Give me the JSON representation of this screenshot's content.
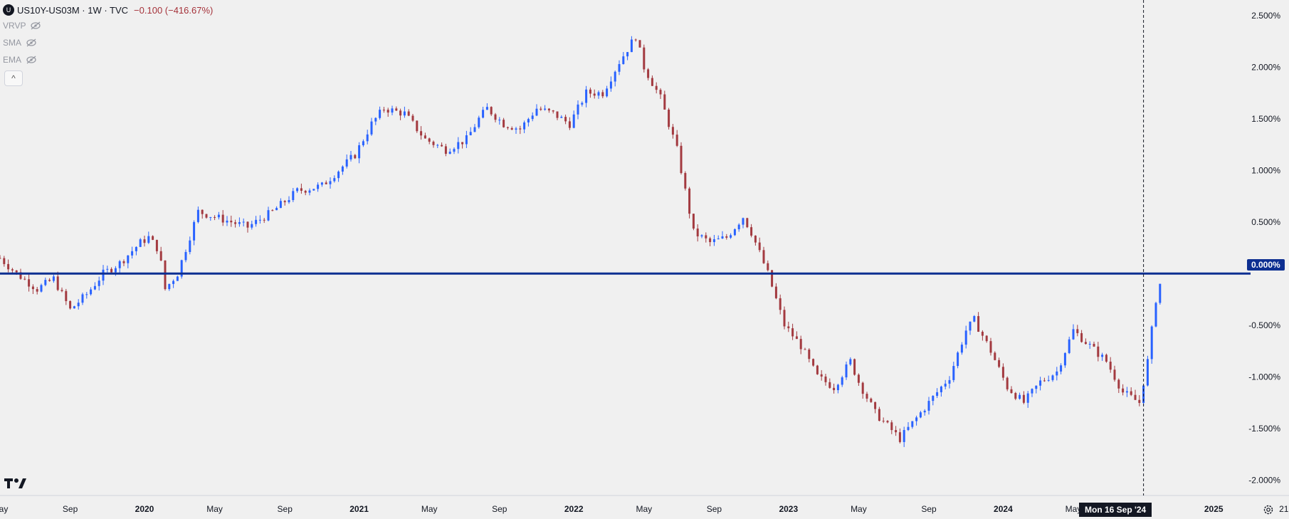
{
  "header": {
    "symbol_badge": "U",
    "title": "US10Y-US03M · 1W · TVC",
    "change": "−0.100 (−416.67%)",
    "indicators": [
      "VRVP",
      "SMA",
      "EMA"
    ],
    "collapse_glyph": "^"
  },
  "price_badge": "0.000%",
  "date_badge": "Mon 16 Sep '24",
  "colors": {
    "up": "#2962ff",
    "down": "#a33a40",
    "zero_line": "#0d2f91",
    "crosshair": "#131722"
  },
  "icons": [
    "eye-off-icon",
    "chevron-up-icon",
    "tradingview-logo-icon",
    "settings-gear-icon"
  ],
  "chart_data": {
    "type": "candlestick",
    "title": "US10Y-US03M · 1W · TVC",
    "y_axis_ticks": [
      "2.500%",
      "2.000%",
      "1.500%",
      "1.000%",
      "0.500%",
      "0.000%",
      "-0.500%",
      "-1.000%",
      "-1.500%",
      "-2.000%"
    ],
    "y_tick_values": [
      2.5,
      2.0,
      1.5,
      1.0,
      0.5,
      0.0,
      -0.5,
      -1.0,
      -1.5,
      -2.0
    ],
    "ylim": [
      -2.15,
      2.65
    ],
    "x_axis_ticks": [
      "May",
      "Sep",
      "2020",
      "May",
      "Sep",
      "2021",
      "May",
      "Sep",
      "2022",
      "May",
      "Sep",
      "2023",
      "May",
      "Sep",
      "2024",
      "May",
      "Mon 16 Sep '24",
      "2025",
      "21"
    ],
    "x_tick_bold": [
      false,
      false,
      true,
      false,
      false,
      true,
      false,
      false,
      true,
      false,
      false,
      true,
      false,
      false,
      true,
      false,
      false,
      true,
      false
    ],
    "x_tick_weeks": [
      0,
      17,
      35,
      52,
      69,
      87,
      104,
      121,
      139,
      156,
      173,
      191,
      208,
      225,
      243,
      260,
      279,
      294,
      311
    ],
    "horizontal_line": 0.0,
    "crosshair_week": 277,
    "series_anchors_week": [
      0,
      4,
      9,
      13,
      17,
      21,
      25,
      29,
      34,
      36,
      38,
      39,
      40,
      43,
      48,
      52,
      56,
      60,
      66,
      72,
      78,
      82,
      86,
      90,
      93,
      98,
      103,
      108,
      113,
      116,
      118,
      122,
      126,
      130,
      134,
      138,
      142,
      146,
      150,
      154,
      156,
      160,
      164,
      168,
      172,
      176,
      180,
      182,
      186,
      190,
      194,
      198,
      202,
      206,
      208,
      212,
      218,
      222,
      226,
      230,
      234,
      236,
      240,
      244,
      248,
      252,
      256,
      260,
      264,
      268,
      272,
      276,
      278,
      280,
      281
    ],
    "series_anchors_close": [
      0.15,
      0.0,
      -0.15,
      -0.05,
      -0.35,
      -0.2,
      0.0,
      0.1,
      0.3,
      0.35,
      0.25,
      0.1,
      -0.15,
      0.0,
      0.6,
      0.55,
      0.5,
      0.45,
      0.6,
      0.8,
      0.85,
      1.0,
      1.15,
      1.45,
      1.6,
      1.55,
      1.3,
      1.2,
      1.3,
      1.5,
      1.6,
      1.45,
      1.4,
      1.6,
      1.55,
      1.45,
      1.75,
      1.75,
      2.05,
      2.3,
      2.0,
      1.7,
      1.2,
      0.4,
      0.3,
      0.35,
      0.55,
      0.4,
      0.0,
      -0.5,
      -0.7,
      -1.0,
      -1.1,
      -0.85,
      -1.05,
      -1.35,
      -1.6,
      -1.4,
      -1.2,
      -1.0,
      -0.55,
      -0.45,
      -0.75,
      -1.1,
      -1.25,
      -1.05,
      -0.95,
      -0.55,
      -0.7,
      -0.85,
      -1.15,
      -1.25,
      -0.85,
      -0.25,
      -0.1
    ],
    "tick_count": 282
  }
}
